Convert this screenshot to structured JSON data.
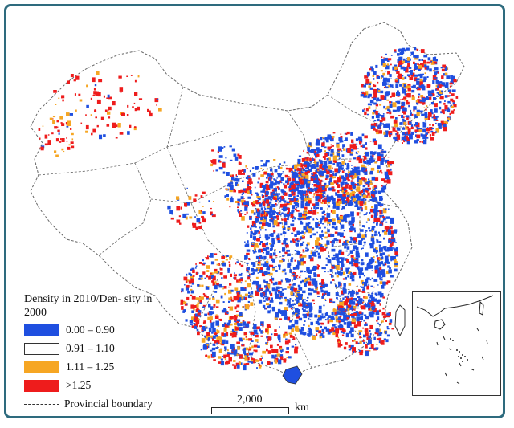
{
  "legend": {
    "title": "Density in 2010/Den- sity in 2000",
    "items": [
      {
        "label": "0.00 – 0.90",
        "color": "#1f4fe0"
      },
      {
        "label": "0.91 – 1.10",
        "color": "#ffffff"
      },
      {
        "label": "1.11 – 1.25",
        "color": "#f6a623"
      },
      {
        "label": ">1.25",
        "color": "#ee1c1c"
      }
    ],
    "boundary_label": "Provincial boundary"
  },
  "scale": {
    "value": "2,000",
    "unit": "km"
  },
  "colors": {
    "frame": "#2e6b7e",
    "boundary": "#666666",
    "blue": "#1f4fe0",
    "orange": "#f6a623",
    "red": "#ee1c1c"
  }
}
